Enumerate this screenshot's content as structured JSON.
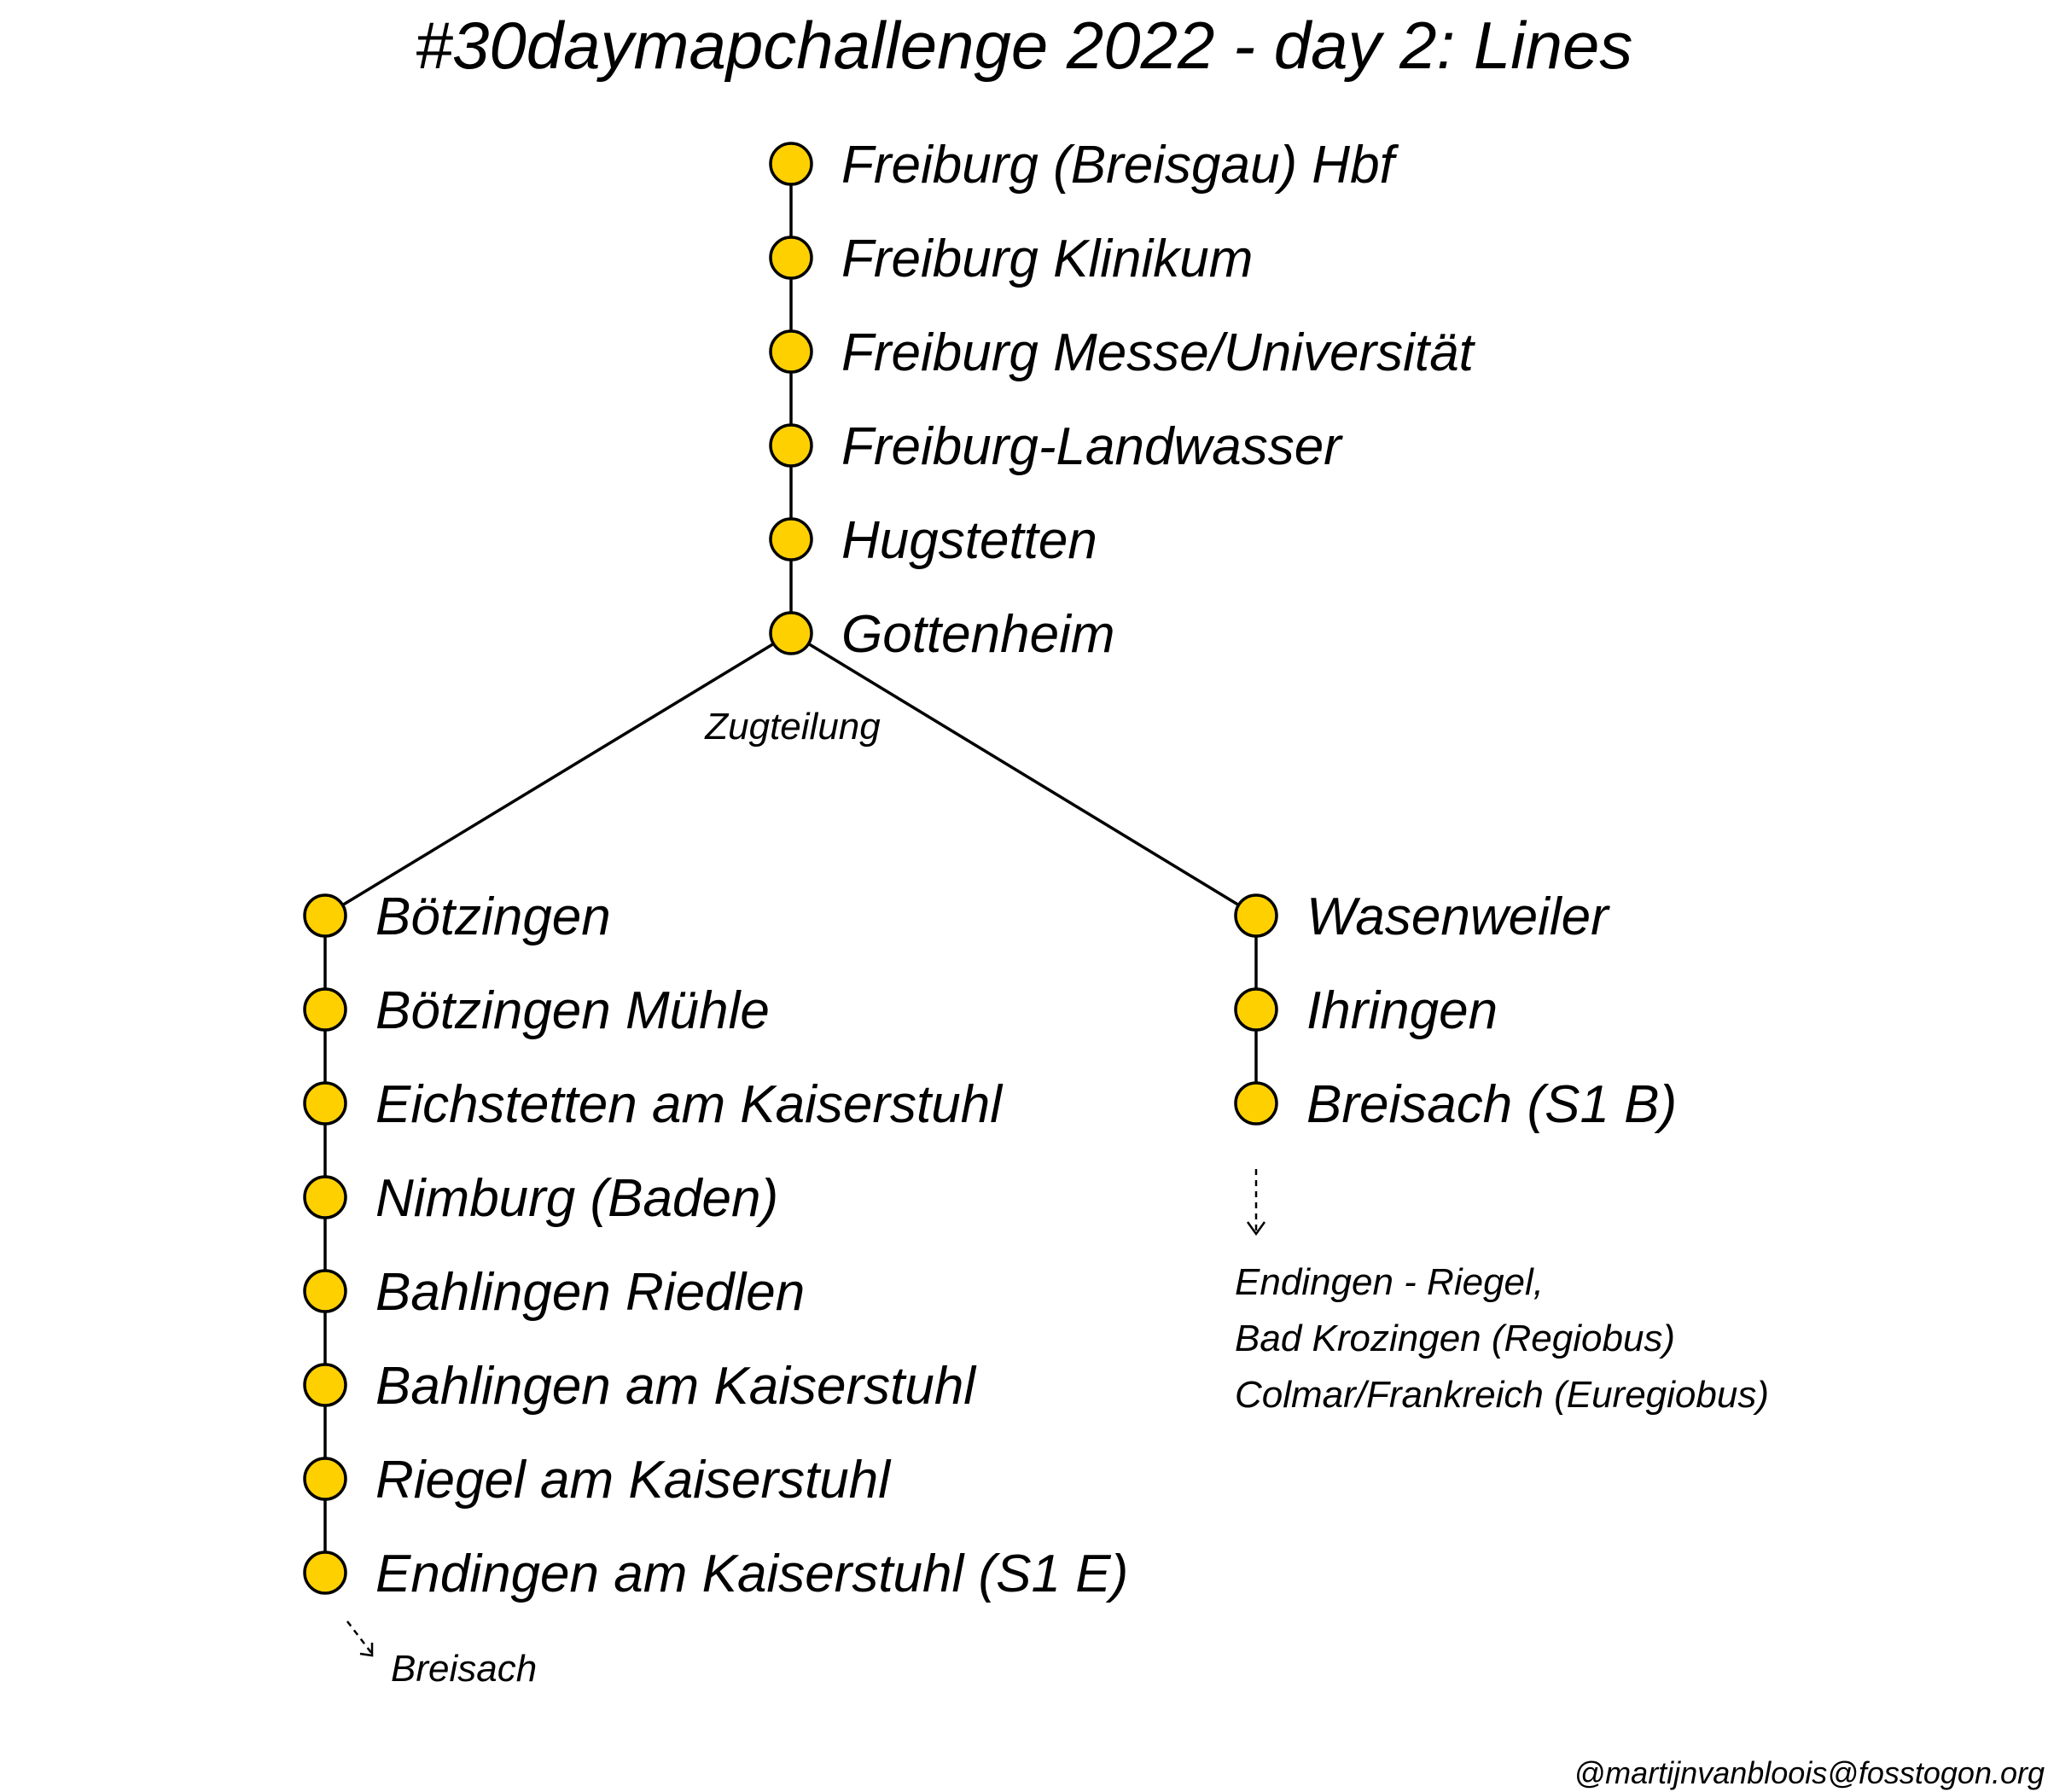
{
  "title": "#30daymapchallenge 2022 - day 2: Lines",
  "colors": {
    "stop_fill": "#FFD000",
    "line": "#000000",
    "background": "#ffffff"
  },
  "trunk": {
    "stations": [
      "Freiburg (Breisgau) Hbf",
      "Freiburg Klinikum",
      "Freiburg Messe/Universität",
      "Freiburg-Landwasser",
      "Hugstetten",
      "Gottenheim"
    ]
  },
  "split_label": "Zugteilung",
  "branch_left": {
    "stations": [
      "Bötzingen",
      "Bötzingen Mühle",
      "Eichstetten am Kaiserstuhl",
      "Nimburg (Baden)",
      "Bahlingen Riedlen",
      "Bahlingen am Kaiserstuhl",
      "Riegel am Kaiserstuhl",
      "Endingen am Kaiserstuhl (S1 E)"
    ],
    "continuation": "Breisach"
  },
  "branch_right": {
    "stations": [
      "Wasenweiler",
      "Ihringen",
      "Breisach (S1 B)"
    ],
    "connections": [
      "Endingen - Riegel,",
      "Bad Krozingen (Regiobus)",
      "Colmar/Frankreich (Euregiobus)"
    ]
  },
  "credit": "@martijnvanbloois@fosstogon.org"
}
